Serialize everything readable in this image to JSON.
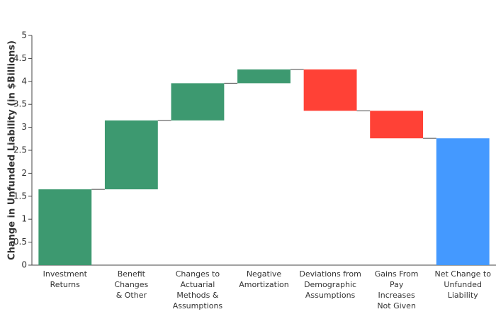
{
  "chart_data": {
    "type": "waterfall",
    "y_label": "Change in Unfunded Liability (in $Billions)",
    "categories": [
      "Investment\nReturns",
      "Benefit\nChanges\n& Other",
      "Changes to\nActuarial\nMethods &\nAssumptions",
      "Negative\nAmortization",
      "Deviations from\nDemographic\nAssumptions",
      "Gains From\nPay\nIncreases\nNot Given",
      "Net Change to\nUnfunded\nLiability"
    ],
    "values": [
      1.65,
      1.5,
      0.81,
      0.3,
      -0.9,
      -0.6,
      2.76
    ],
    "measure": [
      "relative",
      "relative",
      "relative",
      "relative",
      "relative",
      "relative",
      "total"
    ],
    "colors": {
      "increasing": "#3d9970",
      "decreasing": "#ff4136",
      "total": "#4499ff"
    },
    "ylim": [
      0,
      5
    ],
    "yticks": [
      0,
      0.5,
      1,
      1.5,
      2,
      2.5,
      3,
      3.5,
      4,
      4.5,
      5
    ],
    "grid": false
  }
}
